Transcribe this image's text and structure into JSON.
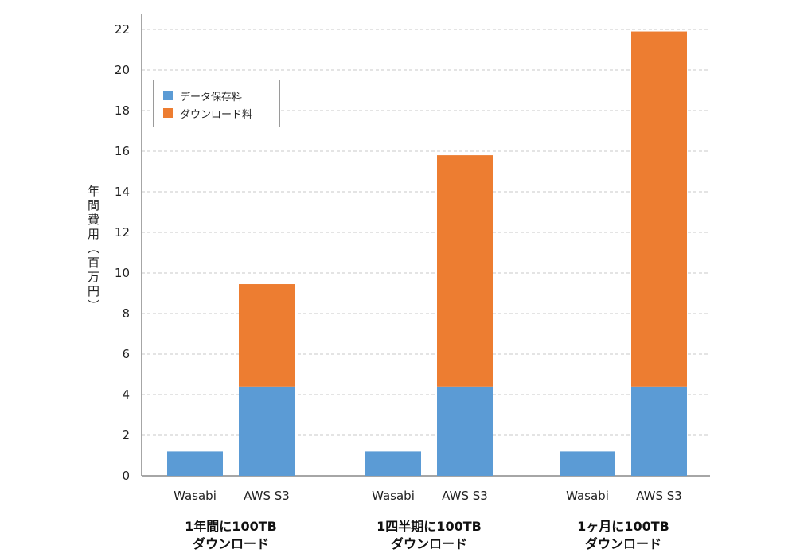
{
  "chart_data": {
    "type": "bar",
    "stacked": true,
    "ylabel": "年間費用（百万円）",
    "ylim": [
      0,
      22
    ],
    "yticks": [
      0,
      2,
      4,
      6,
      8,
      10,
      12,
      14,
      16,
      18,
      20,
      22
    ],
    "grid": true,
    "legend_position": "top-left",
    "groups": [
      {
        "label_line1": "1年間に100TB",
        "label_line2": "ダウンロード",
        "categories": [
          "Wasabi",
          "AWS S3"
        ]
      },
      {
        "label_line1": "1四半期に100TB",
        "label_line2": "ダウンロード",
        "categories": [
          "Wasabi",
          "AWS S3"
        ]
      },
      {
        "label_line1": "1ヶ月に100TB",
        "label_line2": "ダウンロード",
        "categories": [
          "Wasabi",
          "AWS S3"
        ]
      }
    ],
    "series": [
      {
        "name": "データ保存料",
        "color": "#5b9bd5",
        "values": [
          1.2,
          4.4,
          1.2,
          4.4,
          1.2,
          4.4
        ]
      },
      {
        "name": "ダウンロード料",
        "color": "#ed7d31",
        "values": [
          0,
          5.05,
          0,
          11.4,
          0,
          17.5
        ]
      }
    ]
  }
}
